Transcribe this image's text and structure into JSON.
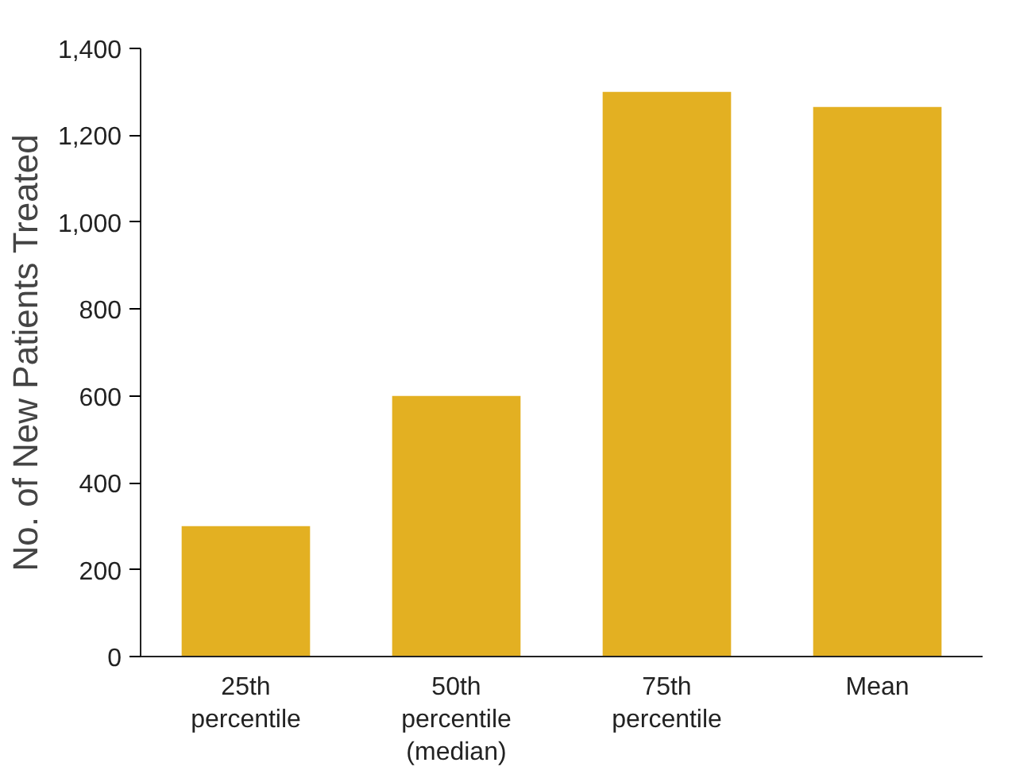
{
  "chart_data": {
    "type": "bar",
    "ylabel": "No. of New Patients Treated",
    "categories": [
      "25th\npercentile",
      "50th\npercentile\n(median)",
      "75th\npercentile",
      "Mean"
    ],
    "values": [
      300,
      600,
      1300,
      1265
    ],
    "color": "#e3b022",
    "ylim": [
      0,
      1400
    ],
    "yticks": [
      0,
      {
        "value": 200,
        "label": "200"
      },
      {
        "value": 400,
        "label": "400"
      },
      {
        "value": 600,
        "label": "600"
      },
      {
        "value": 800,
        "label": "800"
      },
      {
        "value": 1000,
        "label": "1,000"
      },
      {
        "value": 1200,
        "label": "1,200"
      },
      {
        "value": 1400,
        "label": "1,400"
      }
    ],
    "grid": false
  }
}
